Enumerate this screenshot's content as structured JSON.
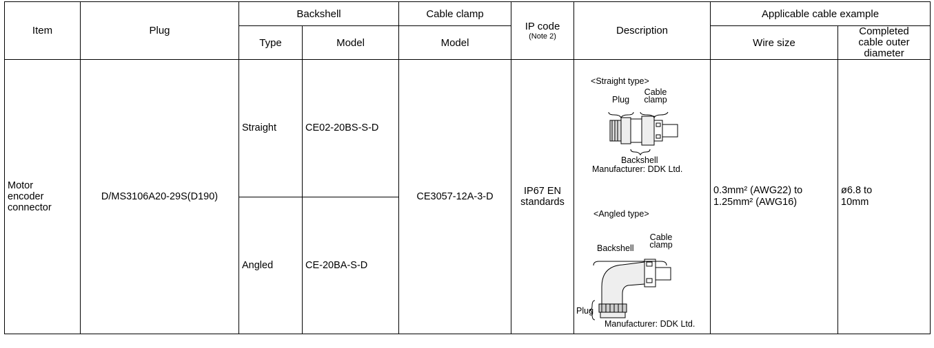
{
  "table": {
    "header": {
      "item": "Item",
      "plug": "Plug",
      "backshell": "Backshell",
      "type": "Type",
      "backshell_model": "Model",
      "cable_clamp": "Cable clamp",
      "cable_clamp_model": "Model",
      "ip_code": "IP code",
      "ip_note": "(Note 2)",
      "description": "Description",
      "applicable_cable": "Applicable cable example",
      "wire_size": "Wire size",
      "outer_diameter": "Completed cable outer diameter"
    },
    "row": {
      "item": "Motor encoder connector",
      "plug": "D/MS3106A20-29S(D190)",
      "backshells": [
        {
          "type": "Straight",
          "model": "CE02-20BS-S-D"
        },
        {
          "type": "Angled",
          "model": "CE-20BA-S-D"
        }
      ],
      "cable_clamp_model": "CE3057-12A-3-D",
      "ip_code": "IP67 EN standards",
      "description": {
        "straight": {
          "title": "<Straight type>",
          "plug": "Plug",
          "cable_clamp": "Cable clamp",
          "backshell": "Backshell",
          "manufacturer": "Manufacturer: DDK Ltd."
        },
        "angled": {
          "title": "<Angled type>",
          "backshell": "Backshell",
          "cable_clamp": "Cable clamp",
          "plug": "Plug",
          "manufacturer": "Manufacturer: DDK Ltd."
        }
      },
      "wire_size": "0.3mm² (AWG22) to 1.25mm² (AWG16)",
      "outer_diameter": "ø6.8 to 10mm"
    }
  }
}
